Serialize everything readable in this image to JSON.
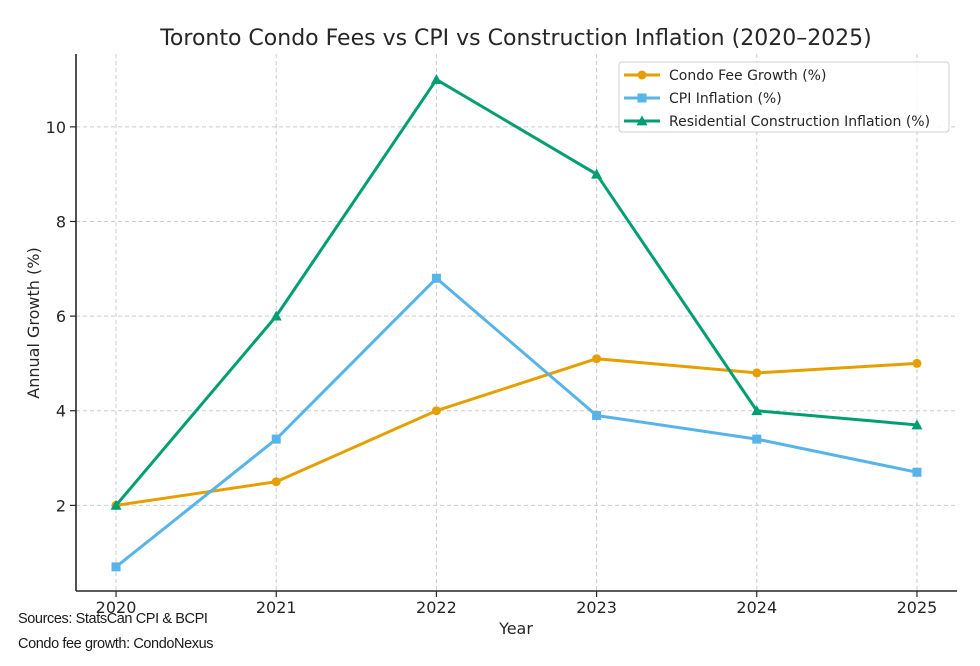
{
  "chart_data": {
    "type": "line",
    "title": "Toronto Condo Fees vs CPI vs Construction Inflation (2020–2025)",
    "xlabel": "Year",
    "ylabel": "Annual Growth (%)",
    "x": [
      2020,
      2021,
      2022,
      2023,
      2024,
      2025
    ],
    "x_tick_labels": [
      "2020",
      "2021",
      "2022",
      "2023",
      "2024",
      "2025"
    ],
    "y_ticks": [
      2,
      4,
      6,
      8,
      10
    ],
    "y_tick_labels": [
      "2",
      "4",
      "6",
      "8",
      "10"
    ],
    "xlim": [
      2019.75,
      2025.25
    ],
    "ylim": [
      0.19,
      11.54
    ],
    "grid": true,
    "legend_position": "top-right",
    "series": [
      {
        "name": "Condo Fee Growth (%)",
        "color": "#E69F00",
        "marker": "circle",
        "values": [
          2.0,
          2.5,
          4.0,
          5.1,
          4.8,
          5.0
        ]
      },
      {
        "name": "CPI Inflation (%)",
        "color": "#56B4E9",
        "marker": "square",
        "values": [
          0.7,
          3.4,
          6.8,
          3.9,
          3.4,
          2.7
        ]
      },
      {
        "name": "Residential Construction Inflation (%)",
        "color": "#009E73",
        "marker": "triangle",
        "values": [
          2.0,
          6.0,
          11.0,
          9.0,
          4.0,
          3.7
        ]
      }
    ]
  },
  "footnotes": {
    "sources": "Sources: StatsCan CPI & BCPI",
    "condo_fee_source": "Condo fee growth: CondoNexus"
  }
}
